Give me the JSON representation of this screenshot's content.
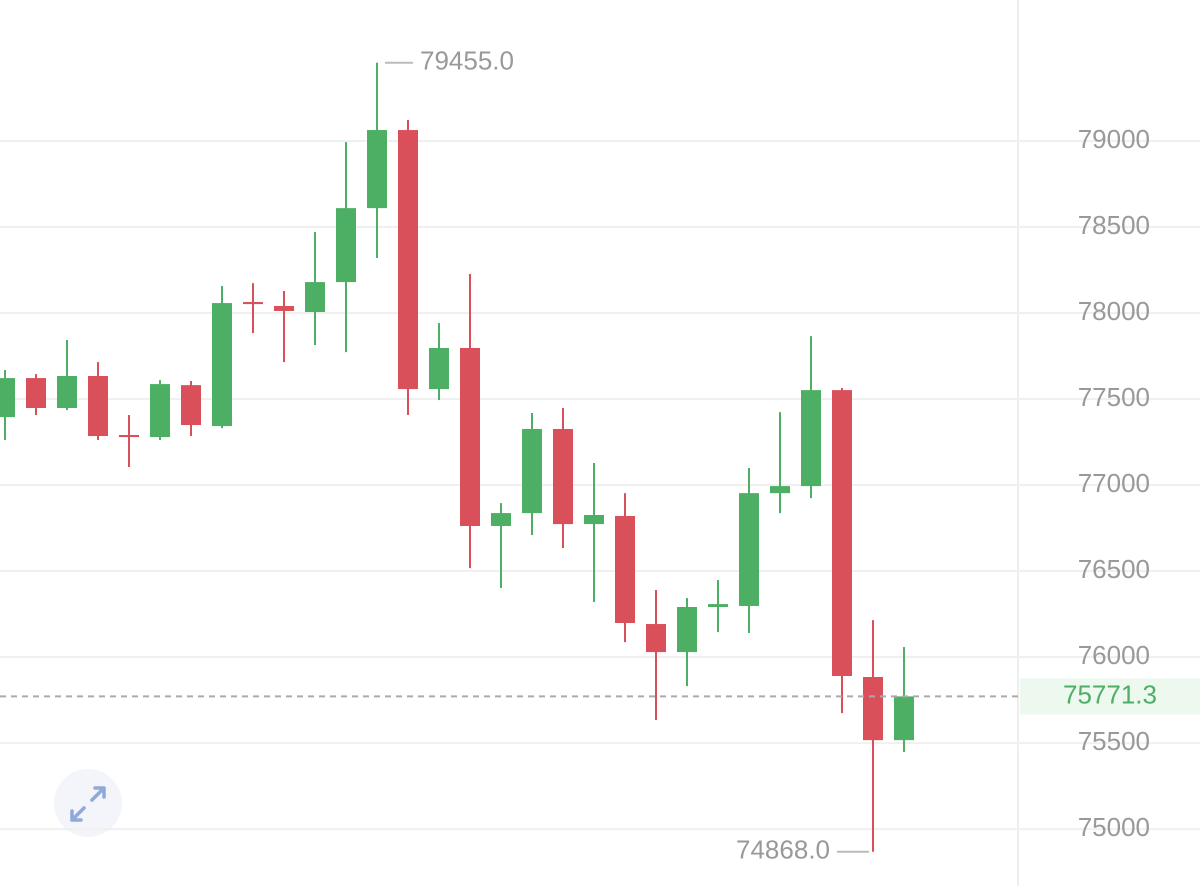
{
  "chart_data": {
    "type": "candlestick",
    "open": [
      77395,
      77622,
      77448,
      77634,
      77291,
      77279,
      77581,
      77343,
      78064,
      78041,
      78006,
      78180,
      78610,
      79064,
      77558,
      77797,
      76762,
      76837,
      77326,
      76773,
      76820,
      76192,
      76029,
      76291,
      76297,
      76953,
      76994,
      77552,
      75884,
      75517
    ],
    "high": [
      77669,
      77645,
      77843,
      77715,
      77407,
      77610,
      77605,
      78157,
      78174,
      78128,
      78471,
      78994,
      79455,
      79122,
      77942,
      78227,
      76895,
      77419,
      77448,
      77128,
      76953,
      76390,
      76343,
      76448,
      77099,
      77424,
      77866,
      77564,
      76215,
      76058
    ],
    "low": [
      77262,
      77407,
      77436,
      77262,
      77105,
      77262,
      77285,
      77331,
      77884,
      77715,
      77814,
      77773,
      78320,
      77407,
      77494,
      76517,
      76401,
      76709,
      76634,
      76320,
      76087,
      75634,
      75831,
      76145,
      76140,
      76837,
      76924,
      75674,
      74868,
      75448
    ],
    "close": [
      77622,
      77448,
      77634,
      77285,
      77279,
      77587,
      77349,
      78058,
      78052,
      78012,
      78180,
      78610,
      79064,
      77558,
      77797,
      76762,
      76837,
      77326,
      76773,
      76826,
      76198,
      76029,
      76291,
      76308,
      76953,
      76994,
      77552,
      75890,
      75517,
      75771.3
    ],
    "up_color": "#4caf64",
    "down_color": "#d9505a",
    "ylim": [
      74669,
      79820
    ],
    "yticks": [
      75000,
      75500,
      76000,
      76500,
      77000,
      77500,
      78000,
      78500,
      79000
    ],
    "grid": true,
    "last_price": 75771.3,
    "annotations": [
      {
        "value": 79455,
        "label": "79455.0"
      },
      {
        "value": 74868,
        "label": "74868.0"
      }
    ]
  }
}
